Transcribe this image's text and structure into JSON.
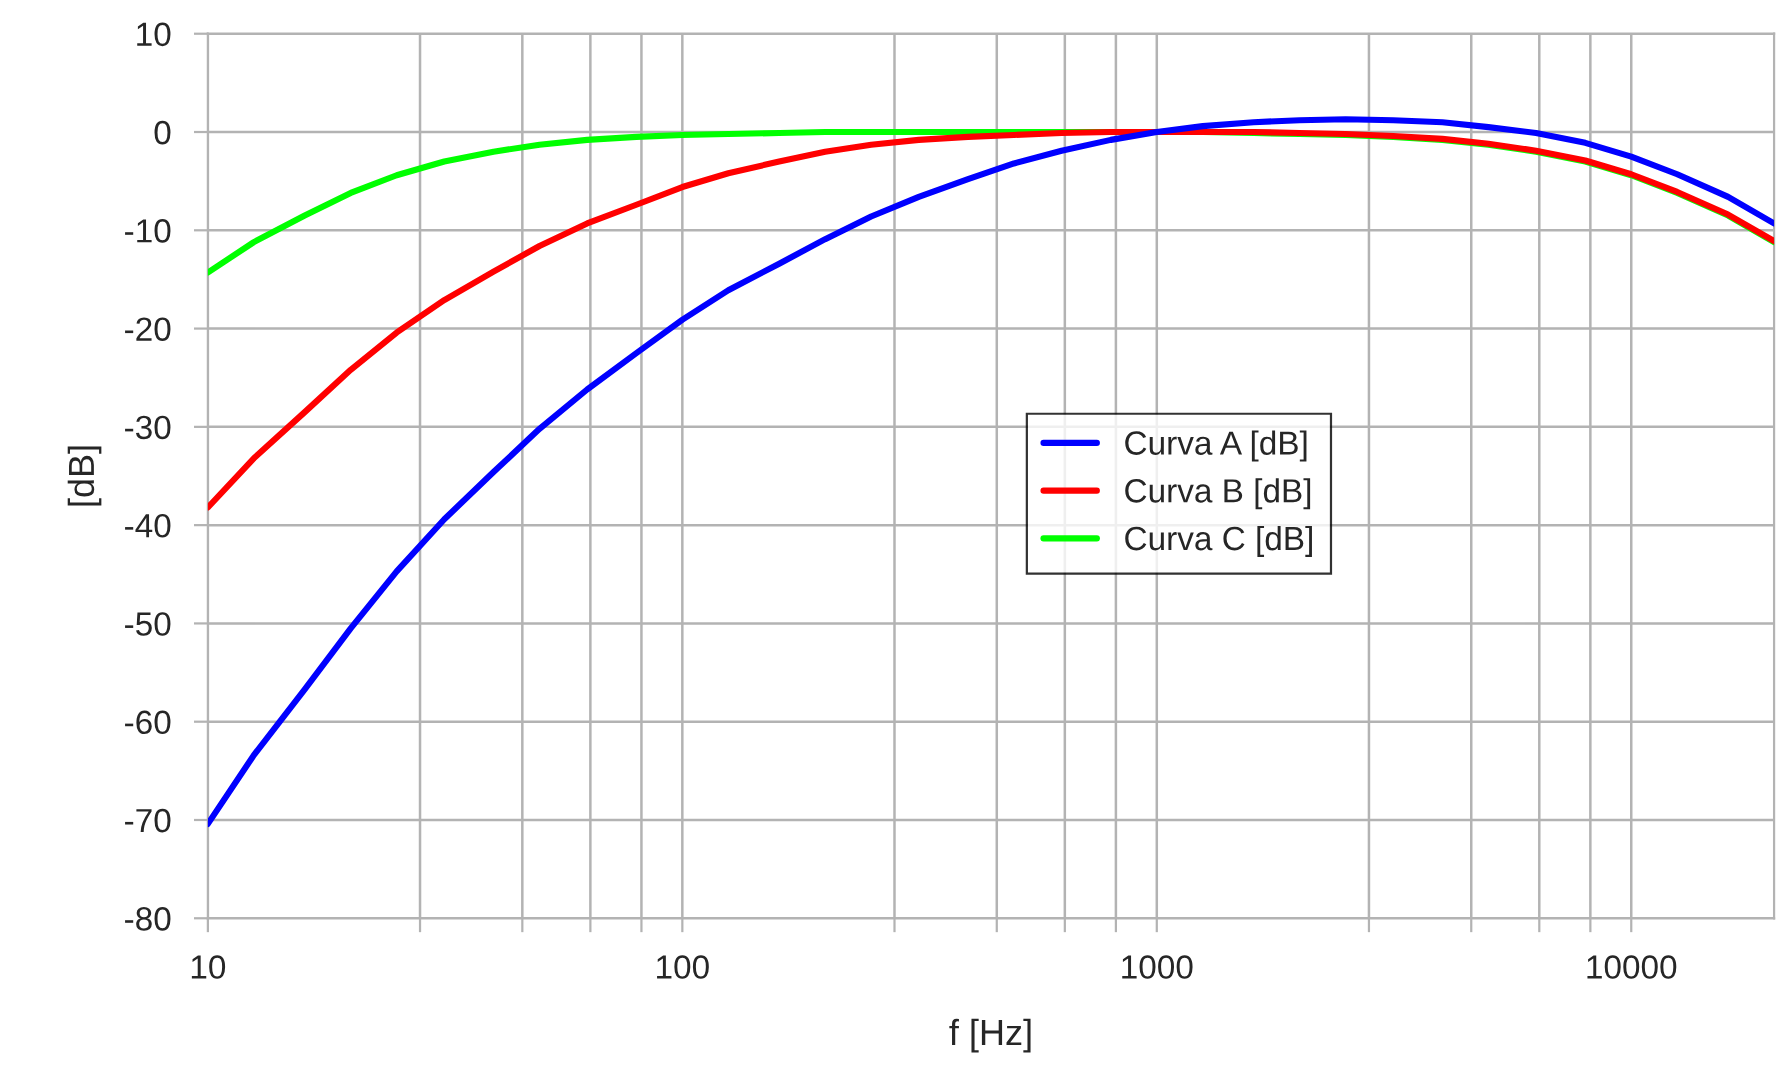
{
  "chart_data": {
    "type": "line",
    "xlabel": "f [Hz]",
    "ylabel": "[dB]",
    "log": "x",
    "x": [
      10,
      12.5,
      16,
      20,
      25,
      31.5,
      40,
      50,
      63,
      80,
      100,
      125,
      160,
      200,
      250,
      315,
      400,
      500,
      630,
      800,
      1000,
      1250,
      1600,
      2000,
      2500,
      3150,
      4000,
      5000,
      6300,
      8000,
      10000,
      12500,
      16000,
      20000
    ],
    "series": [
      {
        "name": "Curva A [dB]",
        "color": "#0000ff",
        "values": [
          -70.4,
          -63.4,
          -56.7,
          -50.5,
          -44.7,
          -39.4,
          -34.6,
          -30.2,
          -26.2,
          -22.5,
          -19.1,
          -16.1,
          -13.4,
          -10.9,
          -8.6,
          -6.6,
          -4.8,
          -3.2,
          -1.9,
          -0.8,
          0,
          0.6,
          1.0,
          1.2,
          1.3,
          1.2,
          1.0,
          0.5,
          -0.1,
          -1.1,
          -2.5,
          -4.3,
          -6.6,
          -9.3
        ]
      },
      {
        "name": "Curva B [dB]",
        "color": "#ff0000",
        "values": [
          -38.2,
          -33.2,
          -28.5,
          -24.2,
          -20.4,
          -17.1,
          -14.2,
          -11.6,
          -9.3,
          -7.4,
          -5.6,
          -4.2,
          -3.0,
          -2.0,
          -1.3,
          -0.8,
          -0.5,
          -0.3,
          -0.1,
          0,
          0,
          0,
          0,
          -0.1,
          -0.2,
          -0.4,
          -0.7,
          -1.2,
          -1.9,
          -2.9,
          -4.3,
          -6.1,
          -8.4,
          -11.1
        ]
      },
      {
        "name": "Curva C [dB]",
        "color": "#00ff00",
        "values": [
          -14.3,
          -11.2,
          -8.5,
          -6.2,
          -4.4,
          -3.0,
          -2.0,
          -1.3,
          -0.8,
          -0.5,
          -0.3,
          -0.2,
          -0.1,
          0,
          0,
          0,
          0,
          0,
          0,
          0,
          0,
          0,
          -0.1,
          -0.2,
          -0.3,
          -0.5,
          -0.8,
          -1.3,
          -2.0,
          -3.0,
          -4.4,
          -6.2,
          -8.5,
          -11.2
        ]
      }
    ],
    "xlim": [
      10,
      20000
    ],
    "xticks": [
      10,
      {
        "value": 28,
        "label": null
      },
      {
        "value": 46,
        "label": null
      },
      {
        "value": 64,
        "label": null
      },
      {
        "value": 82,
        "label": null
      },
      100,
      {
        "value": 280,
        "label": null
      },
      {
        "value": 460,
        "label": null
      },
      {
        "value": 640,
        "label": null
      },
      {
        "value": 820,
        "label": null
      },
      1000,
      {
        "value": 2800,
        "label": null
      },
      {
        "value": 4600,
        "label": null
      },
      {
        "value": 6400,
        "label": null
      },
      {
        "value": 8200,
        "label": null
      },
      10000
    ],
    "ylim": [
      -80,
      10
    ],
    "yticks": [
      -80,
      -70,
      -60,
      -50,
      -40,
      -30,
      -20,
      -10,
      0,
      10
    ],
    "grid": true,
    "legend": "center",
    "marker": "none",
    "line_style": "solid"
  }
}
